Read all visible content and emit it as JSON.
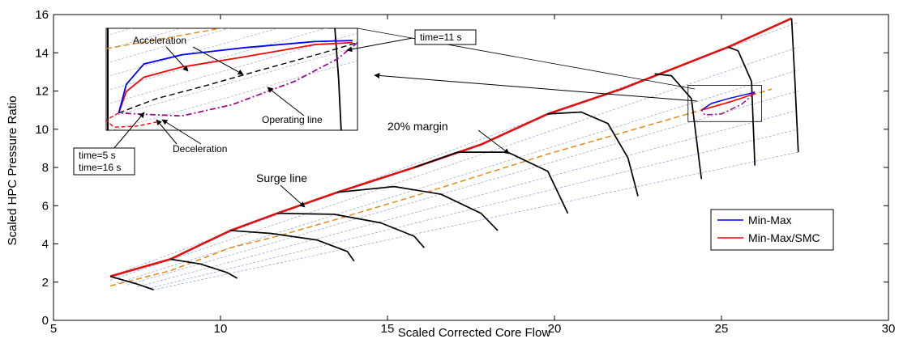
{
  "chart_data": {
    "type": "line",
    "title": "",
    "xlabel": "Scaled Corrected Core Flow",
    "ylabel": "Scaled HPC Pressure Ratio",
    "xlim": [
      5,
      30
    ],
    "ylim": [
      0,
      16
    ],
    "xticks": [
      5,
      10,
      15,
      20,
      25,
      30
    ],
    "yticks": [
      0,
      2,
      4,
      6,
      8,
      10,
      12,
      14,
      16
    ],
    "grid": false,
    "legend": {
      "placement": "right-middle",
      "entries": [
        {
          "label": "Min-Max",
          "color": "#0000ff"
        },
        {
          "label": "Min-Max/SMC",
          "color": "#ff0000"
        }
      ]
    },
    "series": [
      {
        "role": "surge line",
        "color": "#e01010",
        "style": "solid",
        "x": [
          6.7,
          8.5,
          10.3,
          11.7,
          13.5,
          15.8,
          17.8,
          19.8,
          22.0,
          25.2,
          27.1
        ],
        "y": [
          2.3,
          3.2,
          4.7,
          5.6,
          6.7,
          8.0,
          9.2,
          10.8,
          12.1,
          14.3,
          15.8
        ]
      },
      {
        "role": "operating line",
        "color": "#e08a1a",
        "style": "dashed",
        "x": [
          6.7,
          8.5,
          10.3,
          11.7,
          13.5,
          15.8,
          17.8,
          19.8,
          22.0,
          24.0,
          26.5
        ],
        "y": [
          1.8,
          2.6,
          3.8,
          4.4,
          5.3,
          6.5,
          7.6,
          8.7,
          9.8,
          10.8,
          12.1
        ]
      },
      {
        "role": "speed line",
        "color": "#000000",
        "style": "solid",
        "x": [
          6.7,
          7.5,
          8.0
        ],
        "y": [
          2.3,
          1.9,
          1.6
        ]
      },
      {
        "role": "speed line",
        "color": "#000000",
        "style": "solid",
        "x": [
          8.5,
          9.4,
          10.2,
          10.5
        ],
        "y": [
          3.2,
          2.95,
          2.5,
          2.2
        ]
      },
      {
        "role": "speed line",
        "color": "#000000",
        "style": "solid",
        "x": [
          10.3,
          11.5,
          12.9,
          13.8,
          14.0
        ],
        "y": [
          4.7,
          4.55,
          4.2,
          3.6,
          3.1
        ]
      },
      {
        "role": "speed line",
        "color": "#000000",
        "style": "solid",
        "x": [
          11.7,
          13.4,
          14.8,
          15.8,
          16.1
        ],
        "y": [
          5.6,
          5.55,
          5.1,
          4.4,
          3.8
        ]
      },
      {
        "role": "speed line",
        "color": "#000000",
        "style": "solid",
        "x": [
          13.5,
          15.2,
          16.6,
          17.8,
          18.3
        ],
        "y": [
          6.7,
          7.0,
          6.6,
          5.6,
          4.7
        ]
      },
      {
        "role": "speed line",
        "color": "#000000",
        "style": "solid",
        "x": [
          15.8,
          17.1,
          18.6,
          19.8,
          20.4
        ],
        "y": [
          8.0,
          8.8,
          8.8,
          7.8,
          5.6
        ]
      },
      {
        "role": "speed line",
        "color": "#000000",
        "style": "solid",
        "x": [
          19.8,
          20.8,
          21.6,
          22.2,
          22.5
        ],
        "y": [
          10.8,
          10.9,
          10.3,
          8.5,
          6.5
        ]
      },
      {
        "role": "speed line",
        "color": "#000000",
        "style": "solid",
        "x": [
          23.0,
          23.5,
          24.1,
          24.4
        ],
        "y": [
          12.9,
          12.8,
          11.6,
          7.4
        ]
      },
      {
        "role": "speed line",
        "color": "#000000",
        "style": "solid",
        "x": [
          25.2,
          25.5,
          25.9,
          26.0
        ],
        "y": [
          14.3,
          14.1,
          12.5,
          8.1
        ]
      },
      {
        "role": "speed line",
        "color": "#000000",
        "style": "solid",
        "x": [
          27.1,
          27.2,
          27.3
        ],
        "y": [
          15.8,
          12.5,
          8.8
        ]
      },
      {
        "name": "Min-Max",
        "color": "#0000ff",
        "style": "solid",
        "x": [
          24.4,
          24.7,
          25.2,
          25.8,
          26.0
        ],
        "y": [
          11.0,
          11.35,
          11.6,
          11.85,
          11.95
        ]
      },
      {
        "name": "Min-Max/SMC",
        "color": "#ff0000",
        "style": "solid",
        "x": [
          24.4,
          24.8,
          25.3,
          25.8,
          26.0
        ],
        "y": [
          11.0,
          11.2,
          11.45,
          11.75,
          11.9
        ]
      },
      {
        "role": "deceleration",
        "color": "#9b0a8c",
        "style": "dashdot",
        "x": [
          26.0,
          25.6,
          25.0,
          24.5,
          24.4
        ],
        "y": [
          11.9,
          11.3,
          10.8,
          10.75,
          11.0
        ]
      }
    ],
    "constant_lines": {
      "color": "#8ea2d8",
      "lines": [
        {
          "x": [
            6.7,
            27.3
          ],
          "y": [
            2.3,
            15.6
          ]
        },
        {
          "x": [
            6.7,
            27.3
          ],
          "y": [
            2.1,
            14.3
          ]
        },
        {
          "x": [
            6.9,
            27.3
          ],
          "y": [
            1.95,
            13.1
          ]
        },
        {
          "x": [
            7.2,
            27.3
          ],
          "y": [
            1.85,
            12.0
          ]
        },
        {
          "x": [
            7.5,
            27.3
          ],
          "y": [
            1.75,
            11.0
          ]
        },
        {
          "x": [
            7.8,
            27.3
          ],
          "y": [
            1.65,
            10.0
          ]
        },
        {
          "x": [
            8.0,
            27.3
          ],
          "y": [
            1.6,
            8.8
          ]
        }
      ]
    },
    "inset": {
      "source_box": {
        "xlim": [
          24.0,
          26.2
        ],
        "ylim": [
          10.4,
          12.3
        ]
      },
      "blue": {
        "x": [
          0.05,
          0.08,
          0.15,
          0.3,
          0.55,
          0.83,
          0.98
        ],
        "y": [
          0.17,
          0.45,
          0.65,
          0.74,
          0.81,
          0.87,
          0.88
        ]
      },
      "red": {
        "x": [
          0.05,
          0.08,
          0.15,
          0.3,
          0.55,
          0.83,
          0.98
        ],
        "y": [
          0.17,
          0.38,
          0.52,
          0.62,
          0.72,
          0.84,
          0.86
        ]
      },
      "black_dashed": {
        "x": [
          0.05,
          0.2,
          0.4,
          0.6,
          0.85,
          1.0
        ],
        "y": [
          0.17,
          0.31,
          0.44,
          0.58,
          0.75,
          0.86
        ]
      },
      "purple": {
        "x": [
          1.0,
          0.92,
          0.75,
          0.5,
          0.3,
          0.12,
          0.05
        ],
        "y": [
          0.86,
          0.7,
          0.48,
          0.25,
          0.14,
          0.16,
          0.17
        ]
      },
      "red_loop": {
        "x": [
          0.05,
          0.0,
          0.03,
          0.12,
          0.2
        ],
        "y": [
          0.17,
          0.1,
          0.03,
          0.04,
          0.08
        ]
      },
      "orange": {
        "x": [
          0.0,
          0.5,
          1.0
        ],
        "y": [
          0.8,
          1.02,
          1.25
        ]
      }
    },
    "annotations": [
      {
        "text": "Acceleration"
      },
      {
        "text": "time=11 s"
      },
      {
        "text": "Operating line"
      },
      {
        "text": "Deceleration"
      },
      {
        "text": "time=5 s"
      },
      {
        "text": "time=16 s"
      },
      {
        "text": "20% margin"
      },
      {
        "text": "Surge line"
      }
    ]
  }
}
